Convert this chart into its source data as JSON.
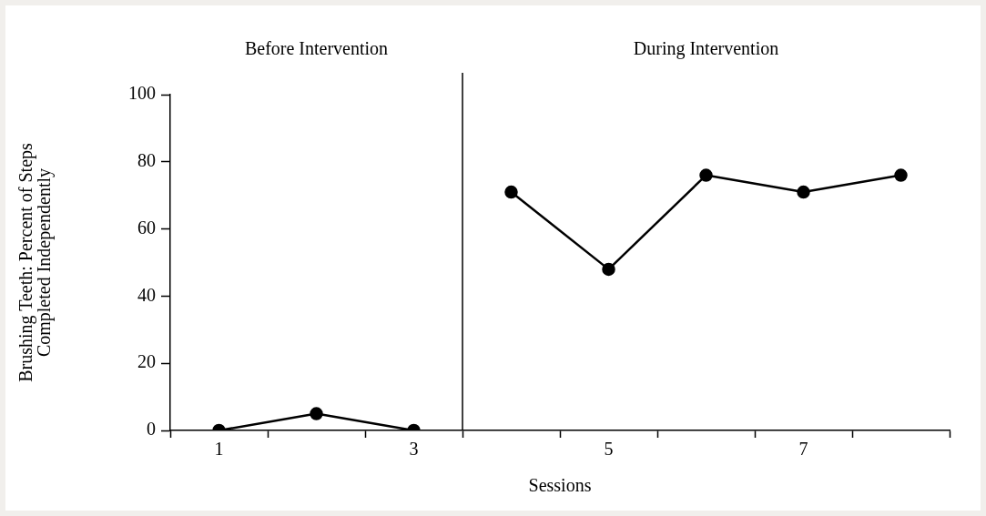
{
  "chart_data": {
    "type": "line",
    "xlabel": "Sessions",
    "ylabel": "Brushing Teeth: Percent of Steps\nCompleted Independently",
    "annotations": [
      "Before Intervention",
      "During Intervention"
    ],
    "series": [
      {
        "color": "#000000",
        "x": [
          1,
          2,
          3
        ],
        "values": [
          0,
          5,
          0
        ]
      },
      {
        "color": "#000000",
        "x": [
          4,
          5,
          6,
          7,
          8
        ],
        "values": [
          71,
          48,
          76,
          71,
          76
        ]
      }
    ],
    "xlim": [
      0.5,
      8.5
    ],
    "xticks": [
      {
        "value": 0.5,
        "label": null
      },
      1,
      {
        "value": 1.5,
        "label": null
      },
      {
        "value": 2.5,
        "label": null
      },
      3,
      {
        "value": 3.5,
        "label": null
      },
      {
        "value": 4.5,
        "label": null
      },
      5,
      {
        "value": 5.5,
        "label": null
      },
      {
        "value": 6.5,
        "label": null
      },
      7,
      {
        "value": 7.5,
        "label": null
      },
      {
        "value": 8.5,
        "label": null
      }
    ],
    "ylim": [
      0,
      100
    ],
    "yticks": [
      0,
      20,
      40,
      60,
      80,
      100
    ],
    "ref_lines": [
      {
        "axis": "x",
        "value": 3.5,
        "color": "#000000"
      }
    ],
    "marker": "circle",
    "line_style": "solid",
    "grid": false,
    "legend": false
  }
}
